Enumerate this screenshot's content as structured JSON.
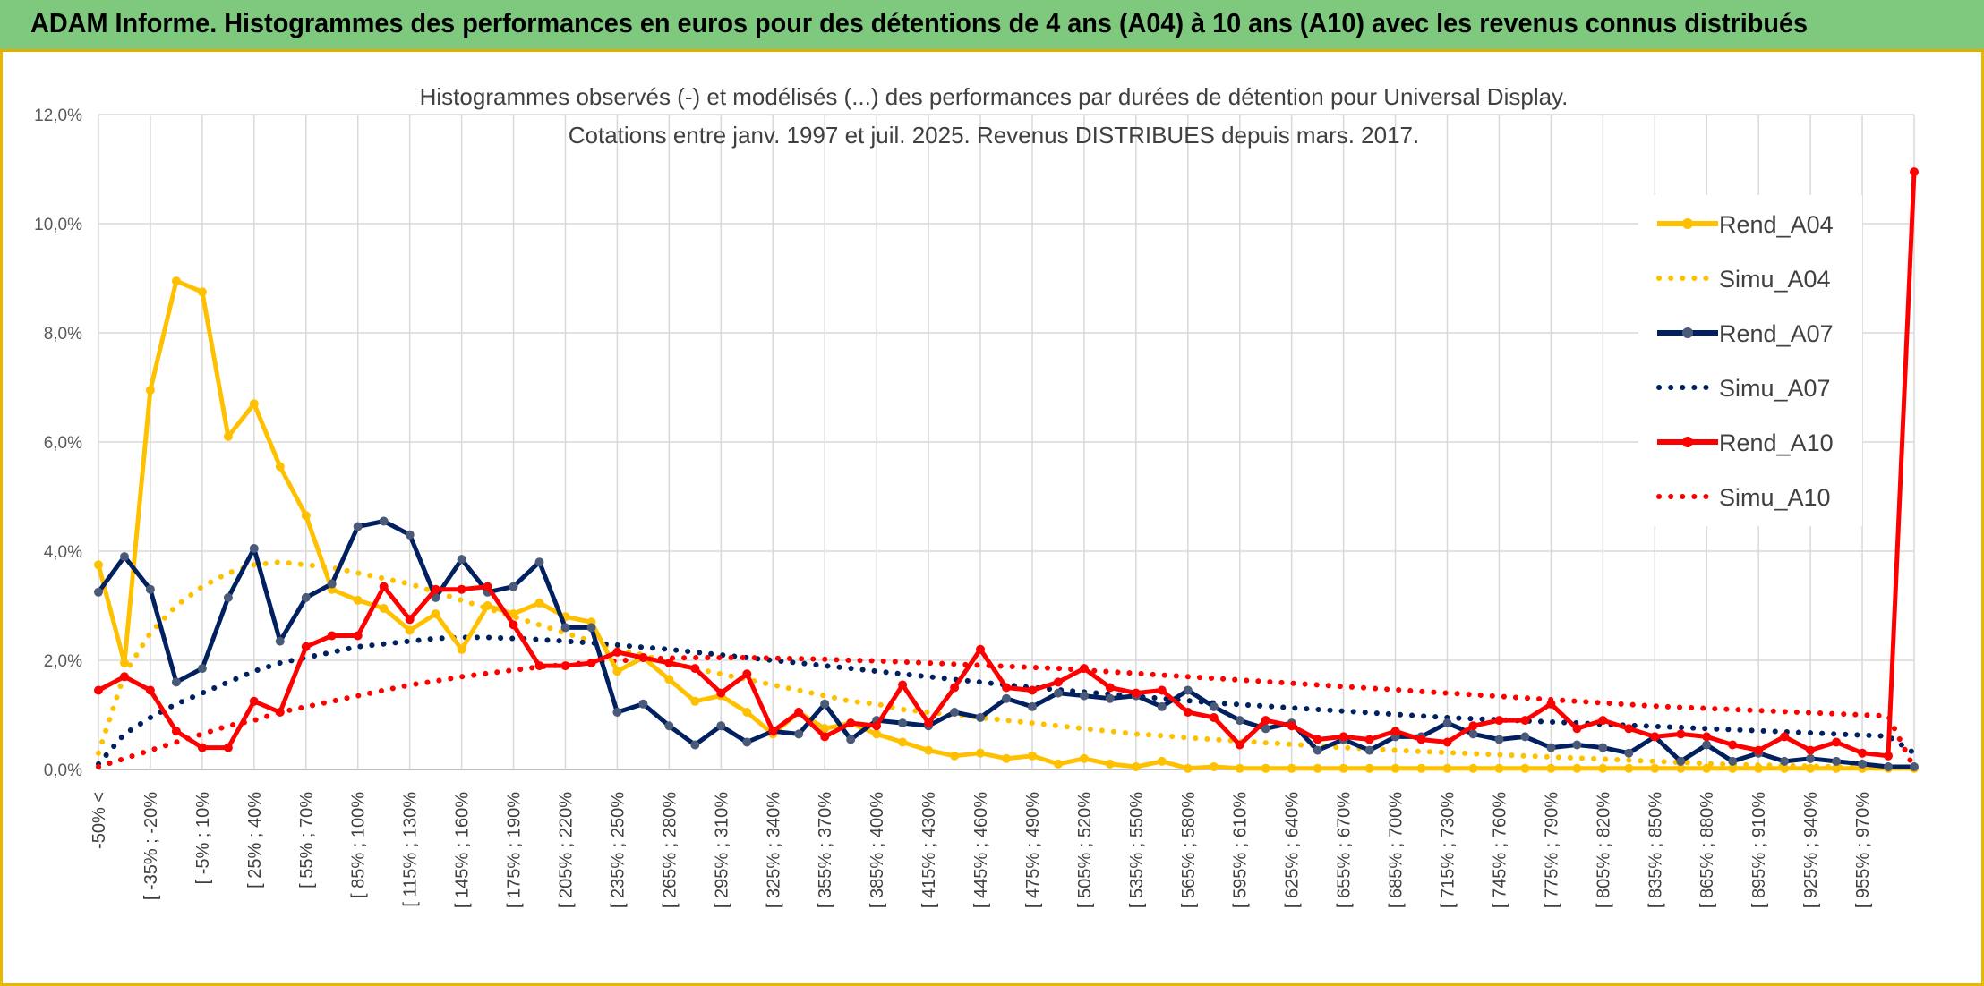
{
  "banner": {
    "title": "ADAM Informe. Histogrammes des performances en euros pour des détentions de 4 ans (A04) à 10 ans (A10) avec les revenus connus distribués"
  },
  "colors": {
    "banner_bg": "#7fc97f",
    "border": "#e8b800",
    "gold": "#FFC000",
    "navy": "#002060",
    "red": "#FF0000",
    "grid": "#d9d9d9"
  },
  "chart_data": {
    "type": "line",
    "title_lines": [
      "Histogrammes observés (-) et modélisés (...) des performances par durées de détention pour Universal Display.",
      "Cotations entre janv. 1997 et juil. 2025. Revenus DISTRIBUES depuis mars. 2017."
    ],
    "ylim": [
      0,
      12
    ],
    "y_ticks": [
      "0,0%",
      "2,0%",
      "4,0%",
      "6,0%",
      "8,0%",
      "10,0%",
      "12,0%"
    ],
    "x_labels": [
      "-50% <",
      "[ -35% ; -20%",
      "[ -5% ; 10%",
      "[ 25% ; 40%",
      "[ 55% ; 70%",
      "[ 85% ; 100%",
      "[ 115% ; 130%",
      "[ 145% ; 160%",
      "[ 175% ; 190%",
      "[ 205% ; 220%",
      "[ 235% ; 250%",
      "[ 265% ; 280%",
      "[ 295% ; 310%",
      "[ 325% ; 340%",
      "[ 355% ; 370%",
      "[ 385% ; 400%",
      "[ 415% ; 430%",
      "[ 445% ; 460%",
      "[ 475% ; 490%",
      "[ 505% ; 520%",
      "[ 535% ; 550%",
      "[ 565% ; 580%",
      "[ 595% ; 610%",
      "[ 625% ; 640%",
      "[ 655% ; 670%",
      "[ 685% ; 700%",
      "[ 715% ; 730%",
      "[ 745% ; 760%",
      "[ 775% ; 790%",
      "[ 805% ; 820%",
      "[ 835% ; 850%",
      "[ 865% ; 880%",
      "[ 895% ; 910%",
      "[ 925% ; 940%",
      "[ 955% ; 970%"
    ],
    "grid": true,
    "legend_position": "right",
    "series": [
      {
        "name": "Rend_A04",
        "style": "solid",
        "color": "#FFC000",
        "values": [
          3.75,
          1.95,
          6.95,
          8.95,
          8.75,
          6.1,
          6.7,
          5.55,
          4.65,
          3.3,
          3.1,
          2.95,
          2.55,
          2.85,
          2.2,
          3.0,
          2.85,
          3.05,
          2.8,
          2.7,
          1.8,
          2.05,
          1.65,
          1.25,
          1.35,
          1.05,
          0.65,
          1.05,
          0.75,
          0.85,
          0.65,
          0.5,
          0.35,
          0.25,
          0.3,
          0.2,
          0.25,
          0.1,
          0.2,
          0.1,
          0.05,
          0.15,
          0.02,
          0.05,
          0.02,
          0.02,
          0.02,
          0.02,
          0.02,
          0.02,
          0.02,
          0.02,
          0.02,
          0.02,
          0.02,
          0.02,
          0.02,
          0.02,
          0.02,
          0.02,
          0.02,
          0.02,
          0.02,
          0.02,
          0.02,
          0.02,
          0.02,
          0.02,
          0.02,
          0.02,
          0.02
        ]
      },
      {
        "name": "Simu_A04",
        "style": "dotted",
        "color": "#FFC000",
        "values": [
          0.3,
          1.75,
          2.5,
          3.0,
          3.35,
          3.6,
          3.75,
          3.8,
          3.75,
          3.7,
          3.6,
          3.5,
          3.4,
          3.25,
          3.1,
          2.95,
          2.8,
          2.65,
          2.5,
          2.35,
          2.2,
          2.1,
          1.95,
          1.85,
          1.75,
          1.65,
          1.55,
          1.45,
          1.35,
          1.25,
          1.2,
          1.1,
          1.05,
          1.0,
          0.95,
          0.9,
          0.85,
          0.8,
          0.75,
          0.7,
          0.65,
          0.62,
          0.58,
          0.55,
          0.52,
          0.49,
          0.46,
          0.43,
          0.4,
          0.38,
          0.35,
          0.33,
          0.31,
          0.29,
          0.27,
          0.25,
          0.23,
          0.21,
          0.19,
          0.17,
          0.15,
          0.13,
          0.11,
          0.09,
          0.08,
          0.07,
          0.06,
          0.05,
          0.04,
          0.03,
          0.02
        ]
      },
      {
        "name": "Rend_A07",
        "style": "solid",
        "color": "#002060",
        "values": [
          3.25,
          3.9,
          3.3,
          1.6,
          1.85,
          3.15,
          4.05,
          2.35,
          3.15,
          3.4,
          4.45,
          4.55,
          4.3,
          3.15,
          3.85,
          3.25,
          3.35,
          3.8,
          2.6,
          2.6,
          1.05,
          1.2,
          0.8,
          0.45,
          0.8,
          0.5,
          0.7,
          0.65,
          1.2,
          0.55,
          0.9,
          0.85,
          0.8,
          1.05,
          0.95,
          1.3,
          1.15,
          1.4,
          1.35,
          1.3,
          1.35,
          1.15,
          1.45,
          1.15,
          0.9,
          0.75,
          0.85,
          0.35,
          0.55,
          0.35,
          0.6,
          0.6,
          0.85,
          0.65,
          0.55,
          0.6,
          0.4,
          0.45,
          0.4,
          0.3,
          0.6,
          0.15,
          0.45,
          0.15,
          0.3,
          0.15,
          0.2,
          0.15,
          0.1,
          0.05,
          0.05
        ]
      },
      {
        "name": "Simu_A07",
        "style": "dotted",
        "color": "#002060",
        "values": [
          0.1,
          0.65,
          0.95,
          1.2,
          1.4,
          1.6,
          1.8,
          1.95,
          2.05,
          2.15,
          2.25,
          2.3,
          2.35,
          2.4,
          2.42,
          2.42,
          2.4,
          2.38,
          2.35,
          2.32,
          2.28,
          2.24,
          2.2,
          2.15,
          2.1,
          2.05,
          2.0,
          1.95,
          1.9,
          1.85,
          1.8,
          1.75,
          1.7,
          1.65,
          1.6,
          1.55,
          1.5,
          1.46,
          1.42,
          1.38,
          1.34,
          1.3,
          1.26,
          1.22,
          1.19,
          1.16,
          1.13,
          1.1,
          1.07,
          1.04,
          1.01,
          0.98,
          0.95,
          0.93,
          0.91,
          0.89,
          0.87,
          0.85,
          0.83,
          0.81,
          0.79,
          0.77,
          0.75,
          0.73,
          0.71,
          0.69,
          0.67,
          0.65,
          0.63,
          0.61,
          0.3
        ]
      },
      {
        "name": "Rend_A10",
        "style": "solid",
        "color": "#FF0000",
        "values": [
          1.45,
          1.7,
          1.45,
          0.7,
          0.4,
          0.4,
          1.25,
          1.05,
          2.25,
          2.45,
          2.45,
          3.35,
          2.75,
          3.3,
          3.3,
          3.35,
          2.65,
          1.9,
          1.9,
          1.95,
          2.15,
          2.05,
          1.95,
          1.85,
          1.4,
          1.75,
          0.7,
          1.05,
          0.6,
          0.85,
          0.8,
          1.55,
          0.85,
          1.5,
          2.2,
          1.5,
          1.45,
          1.6,
          1.85,
          1.5,
          1.4,
          1.45,
          1.05,
          0.95,
          0.45,
          0.9,
          0.8,
          0.55,
          0.6,
          0.55,
          0.7,
          0.55,
          0.5,
          0.8,
          0.9,
          0.9,
          1.2,
          0.75,
          0.9,
          0.75,
          0.6,
          0.65,
          0.6,
          0.45,
          0.35,
          0.6,
          0.35,
          0.5,
          0.3,
          0.25,
          10.95
        ]
      },
      {
        "name": "Simu_A10",
        "style": "dotted",
        "color": "#FF0000",
        "values": [
          0.05,
          0.2,
          0.35,
          0.5,
          0.65,
          0.8,
          0.9,
          1.05,
          1.15,
          1.25,
          1.35,
          1.45,
          1.55,
          1.62,
          1.7,
          1.76,
          1.82,
          1.88,
          1.92,
          1.96,
          1.99,
          2.02,
          2.04,
          2.05,
          2.05,
          2.05,
          2.04,
          2.03,
          2.02,
          2.0,
          1.99,
          1.97,
          1.95,
          1.93,
          1.91,
          1.89,
          1.87,
          1.85,
          1.82,
          1.79,
          1.76,
          1.73,
          1.7,
          1.67,
          1.64,
          1.61,
          1.58,
          1.55,
          1.52,
          1.49,
          1.46,
          1.43,
          1.4,
          1.37,
          1.34,
          1.31,
          1.28,
          1.25,
          1.22,
          1.19,
          1.16,
          1.14,
          1.12,
          1.1,
          1.08,
          1.06,
          1.04,
          1.02,
          1.0,
          0.98,
          0.02
        ]
      }
    ]
  }
}
